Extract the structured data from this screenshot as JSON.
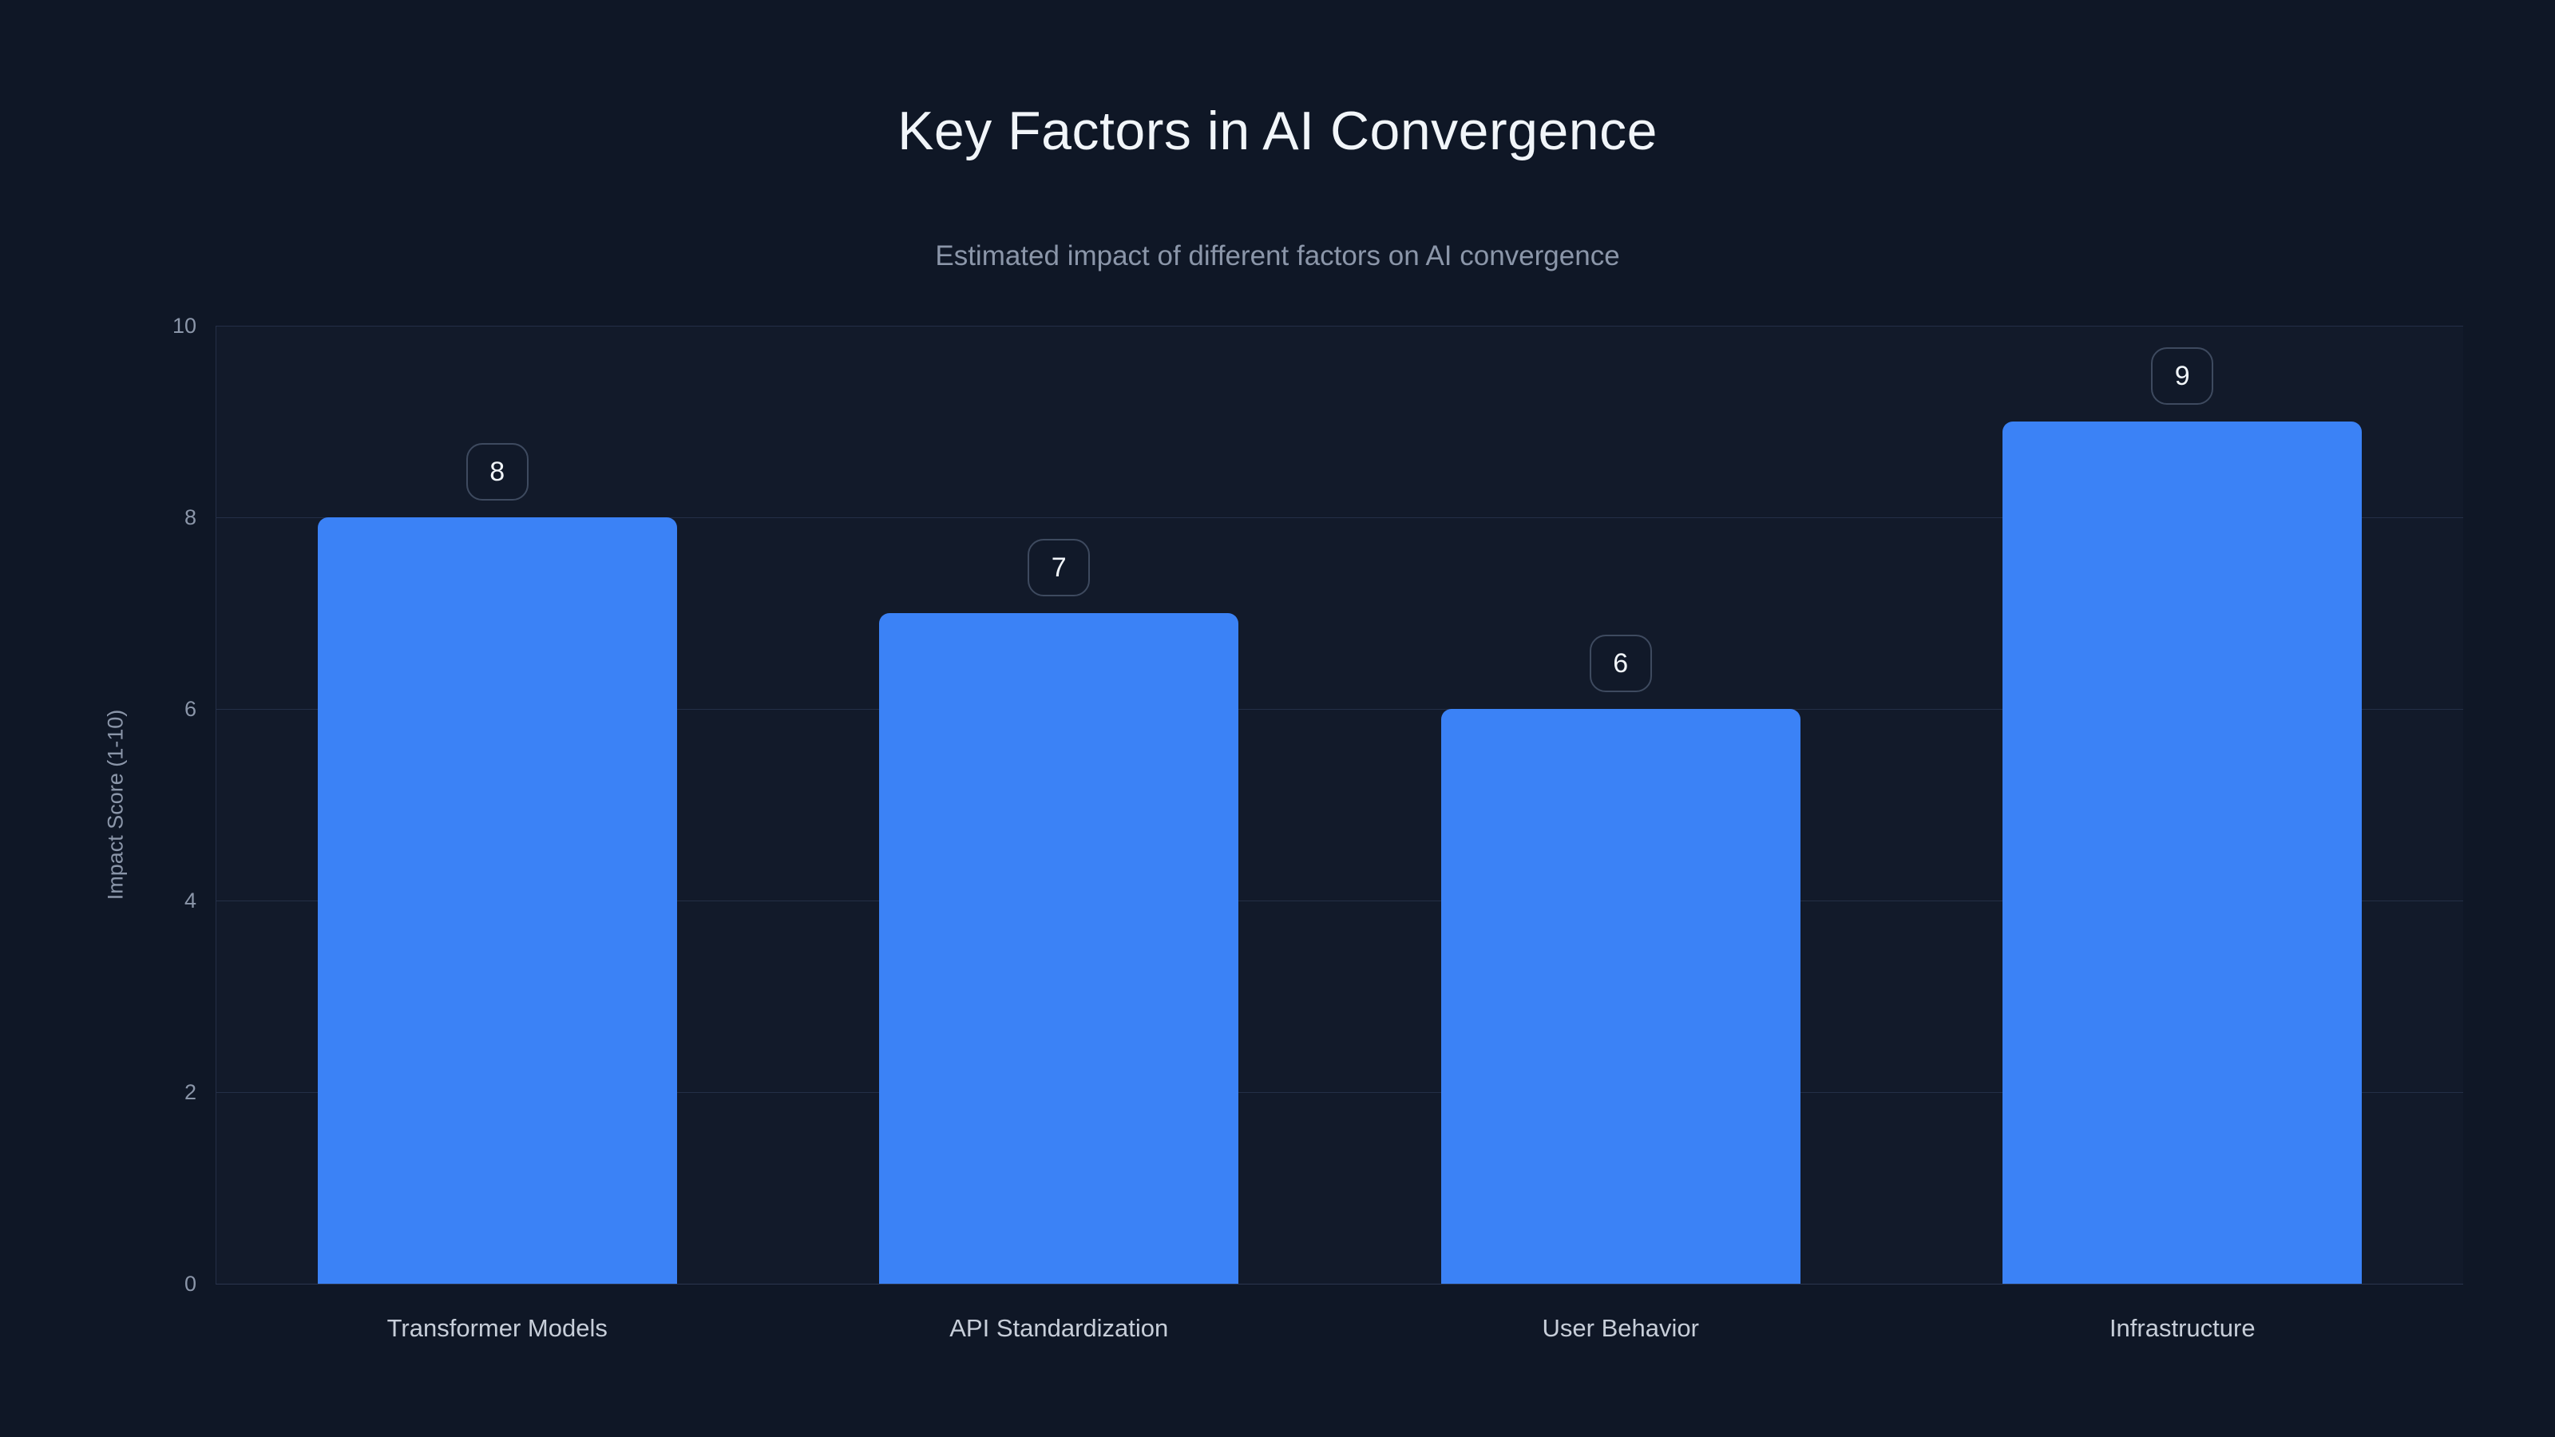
{
  "header": {
    "title": "Key Factors in AI Convergence",
    "subtitle": "Estimated impact of different factors on AI convergence"
  },
  "chart_data": {
    "type": "bar",
    "title": "Key Factors in AI Convergence",
    "subtitle": "Estimated impact of different factors on AI convergence",
    "categories": [
      "Transformer Models",
      "API Standardization",
      "User Behavior",
      "Infrastructure"
    ],
    "values": [
      8,
      7,
      6,
      9
    ],
    "value_labels": [
      "8",
      "7",
      "6",
      "9"
    ],
    "xlabel": "",
    "ylabel": "Impact Score (1-10)",
    "ylim": [
      0,
      10
    ],
    "yticks": [
      0,
      2,
      4,
      6,
      8,
      10
    ],
    "grid": "horizontal",
    "legend": "none"
  },
  "colors": {
    "background": "#0f1726",
    "accent": "#3b82f6",
    "grid": "#242f47",
    "baseline": "#2b364f",
    "text_primary": "#f1f5f9",
    "text_muted": "#8b96a9",
    "category_label": "#c7ced9",
    "badge_border": "#3e4a5f",
    "badge_text": "#f1f5f9"
  }
}
